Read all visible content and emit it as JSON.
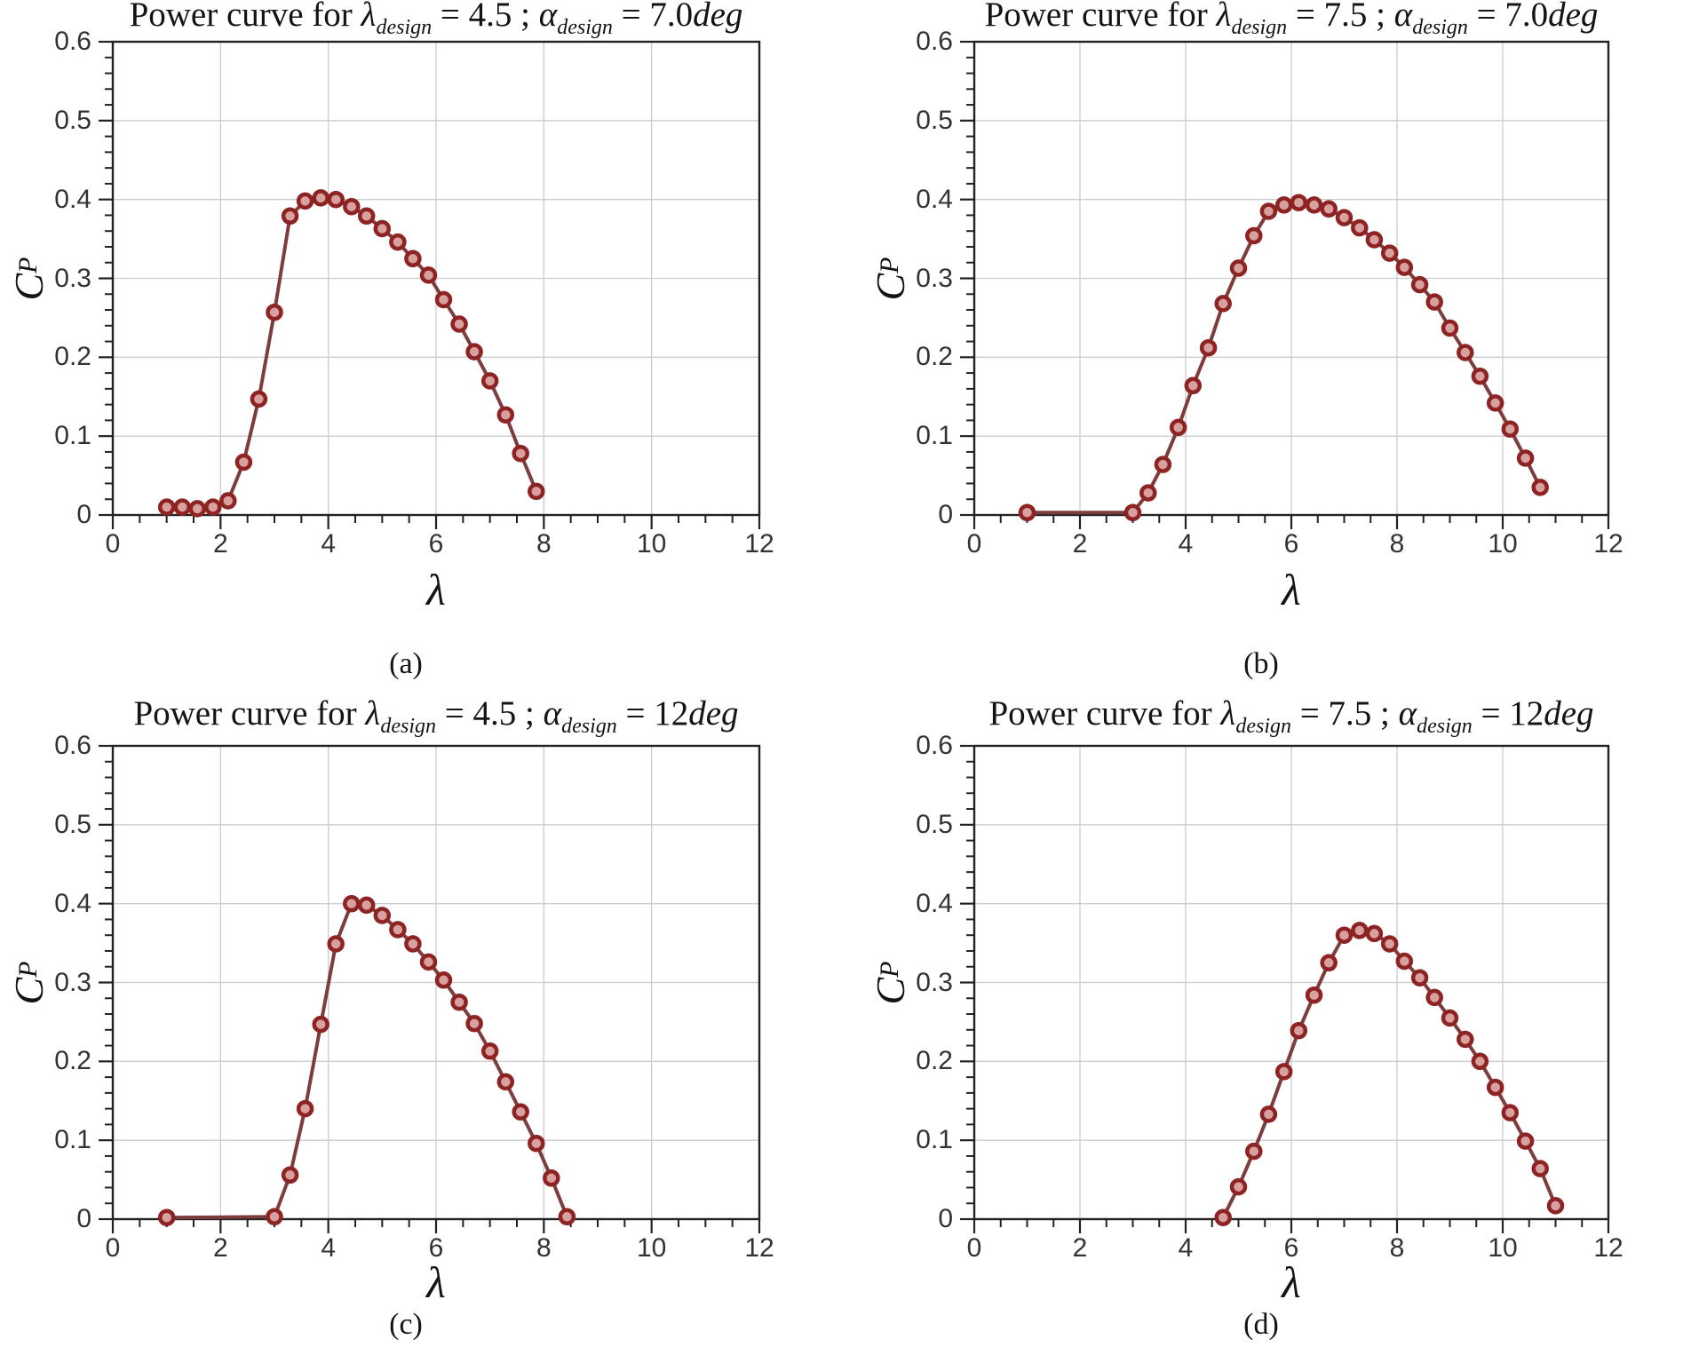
{
  "styles": {
    "background": "#ffffff",
    "line_color": "#7e3d3d",
    "marker_face": "#d9a0a0",
    "marker_edge": "#8e2323",
    "grid_color": "#cccccc",
    "axis_color": "#222222",
    "tick_label_color": "#333333",
    "text_color": "#141414"
  },
  "chart_data": [
    {
      "type": "line",
      "caption": "(a)",
      "title": {
        "prefix": "Power curve for ",
        "lambda_symbol": "λ",
        "design_subscript": "design",
        "equals": " = ",
        "lambda_value": "4.5",
        "separator": " ; ",
        "alpha_symbol": "α",
        "alpha_value": "7.0",
        "deg_suffix": "deg"
      },
      "xlabel": "λ",
      "ylabel": {
        "main": "C",
        "subscript": "P"
      },
      "xlim": [
        0,
        12
      ],
      "ylim": [
        0,
        0.6
      ],
      "grid": true,
      "x_ticks": [
        0,
        2,
        4,
        6,
        8,
        10,
        12
      ],
      "x_tick_labels": [
        "0",
        "2",
        "4",
        "6",
        "8",
        "10",
        "12"
      ],
      "y_ticks": [
        0,
        0.1,
        0.2,
        0.3,
        0.4,
        0.5,
        0.6
      ],
      "y_tick_labels": [
        "0",
        "0.1",
        "0.2",
        "0.3",
        "0.4",
        "0.5",
        "0.6"
      ],
      "x_minor_step": 0.5,
      "y_minor_step": 0.02,
      "series": {
        "x": [
          1.0,
          1.29,
          1.57,
          1.86,
          2.14,
          2.43,
          2.71,
          3.0,
          3.29,
          3.57,
          3.86,
          4.14,
          4.43,
          4.71,
          5.0,
          5.29,
          5.57,
          5.86,
          6.14,
          6.43,
          6.71,
          7.0,
          7.29,
          7.57,
          7.86
        ],
        "cp": [
          0.01,
          0.01,
          0.008,
          0.01,
          0.018,
          0.067,
          0.147,
          0.257,
          0.379,
          0.398,
          0.402,
          0.4,
          0.391,
          0.379,
          0.363,
          0.346,
          0.325,
          0.304,
          0.273,
          0.242,
          0.207,
          0.17,
          0.127,
          0.078,
          0.03
        ]
      }
    },
    {
      "type": "line",
      "caption": "(b)",
      "title": {
        "prefix": "Power curve for ",
        "lambda_symbol": "λ",
        "design_subscript": "design",
        "equals": " = ",
        "lambda_value": "7.5",
        "separator": " ; ",
        "alpha_symbol": "α",
        "alpha_value": "7.0",
        "deg_suffix": "deg"
      },
      "xlabel": "λ",
      "ylabel": {
        "main": "C",
        "subscript": "P"
      },
      "xlim": [
        0,
        12
      ],
      "ylim": [
        0,
        0.6
      ],
      "grid": true,
      "x_ticks": [
        0,
        2,
        4,
        6,
        8,
        10,
        12
      ],
      "x_tick_labels": [
        "0",
        "2",
        "4",
        "6",
        "8",
        "10",
        "12"
      ],
      "y_ticks": [
        0,
        0.1,
        0.2,
        0.3,
        0.4,
        0.5,
        0.6
      ],
      "y_tick_labels": [
        "0",
        "0.1",
        "0.2",
        "0.3",
        "0.4",
        "0.5",
        "0.6"
      ],
      "x_minor_step": 0.5,
      "y_minor_step": 0.02,
      "series": {
        "x": [
          1.0,
          3.0,
          3.29,
          3.57,
          3.86,
          4.14,
          4.43,
          4.71,
          5.0,
          5.29,
          5.57,
          5.86,
          6.14,
          6.43,
          6.71,
          7.0,
          7.29,
          7.57,
          7.86,
          8.14,
          8.43,
          8.71,
          9.0,
          9.29,
          9.57,
          9.86,
          10.14,
          10.43,
          10.71
        ],
        "cp": [
          0.003,
          0.003,
          0.028,
          0.064,
          0.111,
          0.164,
          0.212,
          0.268,
          0.313,
          0.354,
          0.385,
          0.393,
          0.396,
          0.393,
          0.388,
          0.377,
          0.364,
          0.349,
          0.332,
          0.314,
          0.292,
          0.27,
          0.237,
          0.206,
          0.176,
          0.142,
          0.109,
          0.072,
          0.035
        ]
      }
    },
    {
      "type": "line",
      "caption": "(c)",
      "title": {
        "prefix": "Power curve for ",
        "lambda_symbol": "λ",
        "design_subscript": "design",
        "equals": " = ",
        "lambda_value": "4.5",
        "separator": " ; ",
        "alpha_symbol": "α",
        "alpha_value": "12",
        "deg_suffix": "deg"
      },
      "xlabel": "λ",
      "ylabel": {
        "main": "C",
        "subscript": "P"
      },
      "xlim": [
        0,
        12
      ],
      "ylim": [
        0,
        0.6
      ],
      "grid": true,
      "x_ticks": [
        0,
        2,
        4,
        6,
        8,
        10,
        12
      ],
      "x_tick_labels": [
        "0",
        "2",
        "4",
        "6",
        "8",
        "10",
        "12"
      ],
      "y_ticks": [
        0,
        0.1,
        0.2,
        0.3,
        0.4,
        0.5,
        0.6
      ],
      "y_tick_labels": [
        "0",
        "0.1",
        "0.2",
        "0.3",
        "0.4",
        "0.5",
        "0.6"
      ],
      "x_minor_step": 0.5,
      "y_minor_step": 0.02,
      "series": {
        "x": [
          1.0,
          3.0,
          3.29,
          3.57,
          3.86,
          4.14,
          4.43,
          4.71,
          5.0,
          5.29,
          5.57,
          5.86,
          6.14,
          6.43,
          6.71,
          7.0,
          7.29,
          7.57,
          7.86,
          8.14,
          8.43
        ],
        "cp": [
          0.002,
          0.003,
          0.056,
          0.14,
          0.247,
          0.349,
          0.4,
          0.398,
          0.385,
          0.367,
          0.349,
          0.326,
          0.303,
          0.275,
          0.248,
          0.213,
          0.174,
          0.136,
          0.096,
          0.052,
          0.003
        ]
      }
    },
    {
      "type": "line",
      "caption": "(d)",
      "title": {
        "prefix": "Power curve for ",
        "lambda_symbol": "λ",
        "design_subscript": "design",
        "equals": " = ",
        "lambda_value": "7.5",
        "separator": " ; ",
        "alpha_symbol": "α",
        "alpha_value": "12",
        "deg_suffix": "deg"
      },
      "xlabel": "λ",
      "ylabel": {
        "main": "C",
        "subscript": "P"
      },
      "xlim": [
        0,
        12
      ],
      "ylim": [
        0,
        0.6
      ],
      "grid": true,
      "x_ticks": [
        0,
        2,
        4,
        6,
        8,
        10,
        12
      ],
      "x_tick_labels": [
        "0",
        "2",
        "4",
        "6",
        "8",
        "10",
        "12"
      ],
      "y_ticks": [
        0,
        0.1,
        0.2,
        0.3,
        0.4,
        0.5,
        0.6
      ],
      "y_tick_labels": [
        "0",
        "0.1",
        "0.2",
        "0.3",
        "0.4",
        "0.5",
        "0.6"
      ],
      "x_minor_step": 0.5,
      "y_minor_step": 0.02,
      "series": {
        "x": [
          4.71,
          5.0,
          5.29,
          5.57,
          5.86,
          6.14,
          6.43,
          6.71,
          7.0,
          7.29,
          7.57,
          7.86,
          8.14,
          8.43,
          8.71,
          9.0,
          9.29,
          9.57,
          9.86,
          10.14,
          10.43,
          10.71,
          11.0
        ],
        "cp": [
          0.002,
          0.041,
          0.086,
          0.133,
          0.187,
          0.239,
          0.284,
          0.325,
          0.36,
          0.366,
          0.362,
          0.349,
          0.327,
          0.306,
          0.281,
          0.255,
          0.228,
          0.2,
          0.167,
          0.135,
          0.099,
          0.064,
          0.017
        ]
      }
    }
  ]
}
